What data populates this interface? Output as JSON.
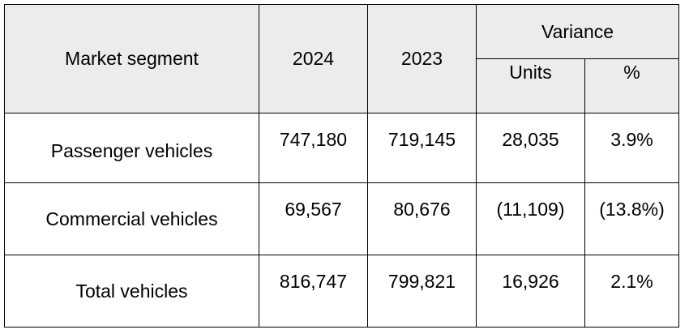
{
  "table": {
    "header": {
      "segment": "Market segment",
      "year_current": "2024",
      "year_prior": "2023",
      "variance": "Variance",
      "units": "Units",
      "percent": "%"
    },
    "rows": [
      {
        "segment": "Passenger vehicles",
        "y2024": "747,180",
        "y2023": "719,145",
        "units": "28,035",
        "pct": "3.9%"
      },
      {
        "segment": "Commercial vehicles",
        "y2024": "69,567",
        "y2023": "80,676",
        "units": "(11,109)",
        "pct": "(13.8%)"
      },
      {
        "segment": "Total vehicles",
        "y2024": "816,747",
        "y2023": "799,821",
        "units": "16,926",
        "pct": "2.1%"
      }
    ]
  }
}
